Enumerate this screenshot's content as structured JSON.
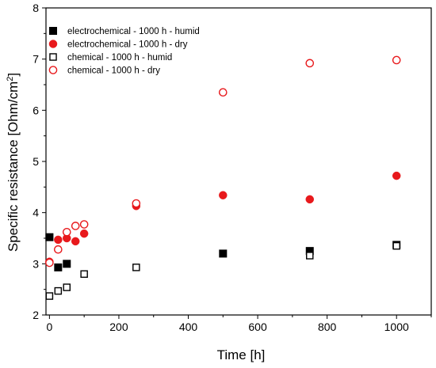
{
  "chart_data": {
    "type": "scatter",
    "xlabel": "Time [h]",
    "ylabel": "Specific resistance [Ohm/cm",
    "ylabel_sup": "2",
    "ylabel_end": "]",
    "xlim": [
      -10,
      1100
    ],
    "ylim": [
      2,
      8
    ],
    "xticks": [
      "0",
      "200",
      "400",
      "600",
      "800",
      "1000"
    ],
    "yticks": [
      "2",
      "3",
      "4",
      "5",
      "6",
      "7",
      "8"
    ],
    "legend_position": "top-left",
    "series": [
      {
        "name": "electrochemical - 1000 h - humid",
        "marker": "square-filled",
        "color": "#000000",
        "points": [
          [
            0,
            3.52
          ],
          [
            25,
            2.93
          ],
          [
            50,
            3.0
          ],
          [
            500,
            3.2
          ],
          [
            750,
            3.25
          ],
          [
            1000,
            3.37
          ]
        ]
      },
      {
        "name": "electrochemical - 1000 h - dry",
        "marker": "circle-filled",
        "color": "#e8191c",
        "points": [
          [
            0,
            3.04
          ],
          [
            25,
            3.47
          ],
          [
            50,
            3.5
          ],
          [
            75,
            3.44
          ],
          [
            100,
            3.59
          ],
          [
            250,
            4.13
          ],
          [
            500,
            4.34
          ],
          [
            750,
            4.26
          ],
          [
            1000,
            4.72
          ]
        ]
      },
      {
        "name": "chemical - 1000 h - humid",
        "marker": "square-open",
        "color": "#000000",
        "points": [
          [
            0,
            2.37
          ],
          [
            25,
            2.47
          ],
          [
            50,
            2.54
          ],
          [
            100,
            2.8
          ],
          [
            250,
            2.93
          ],
          [
            750,
            3.16
          ],
          [
            1000,
            3.35
          ]
        ]
      },
      {
        "name": "chemical - 1000 h - dry",
        "marker": "circle-open",
        "color": "#e8191c",
        "points": [
          [
            0,
            3.02
          ],
          [
            25,
            3.28
          ],
          [
            50,
            3.62
          ],
          [
            75,
            3.74
          ],
          [
            100,
            3.77
          ],
          [
            250,
            4.18
          ],
          [
            500,
            6.35
          ],
          [
            750,
            6.92
          ],
          [
            1000,
            6.98
          ]
        ]
      }
    ]
  }
}
